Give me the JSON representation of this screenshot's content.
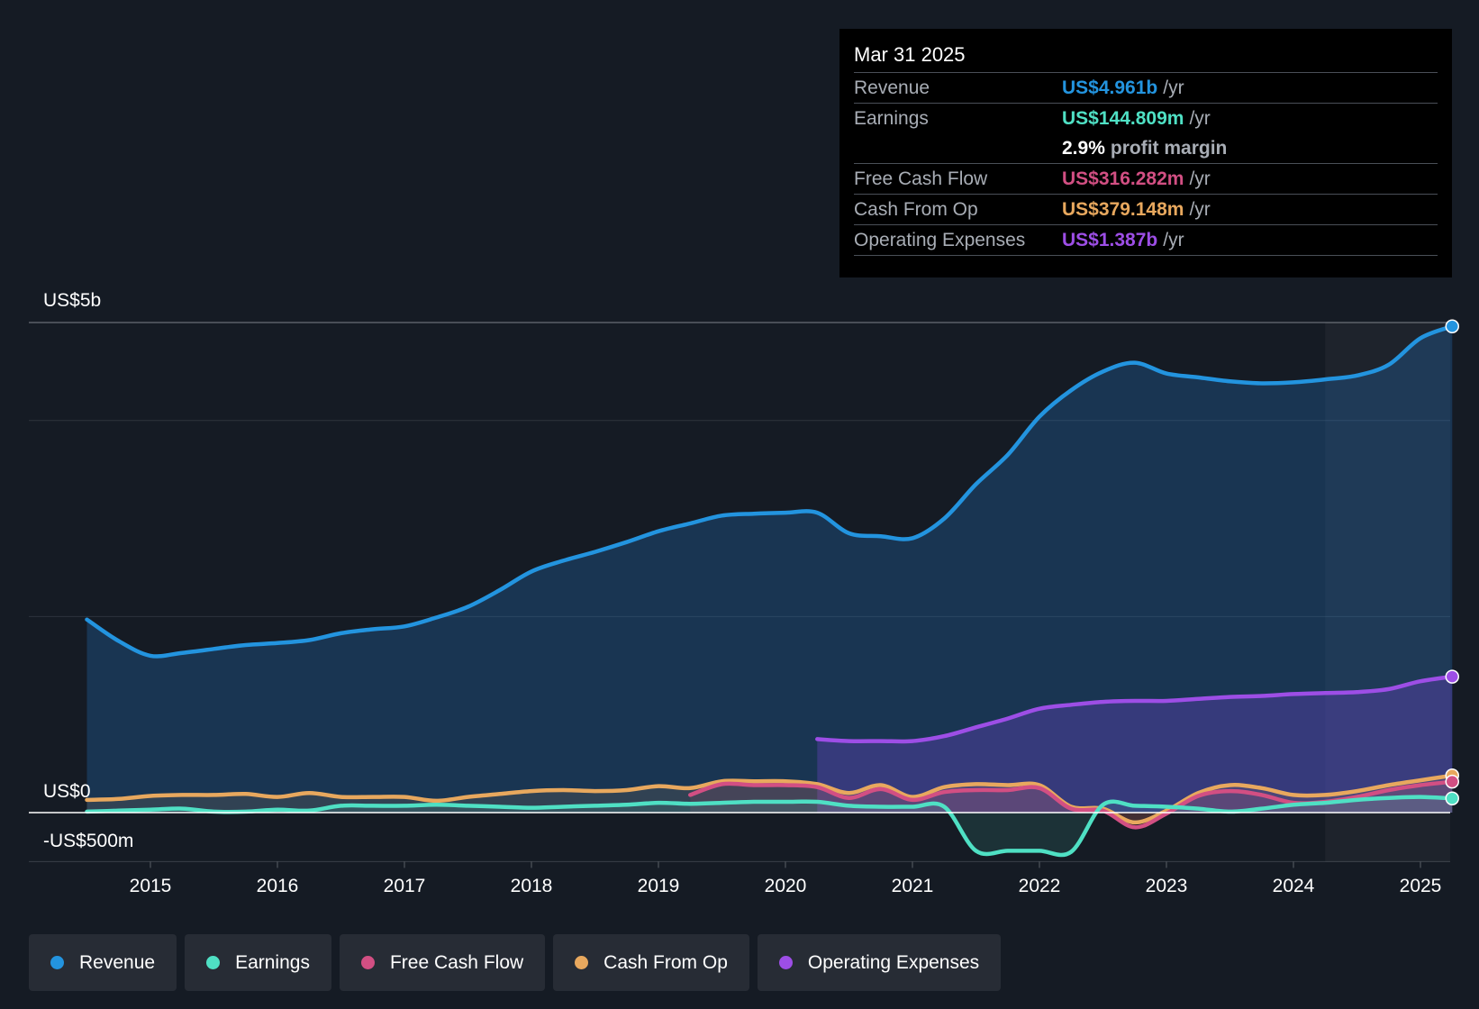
{
  "chart_data": {
    "type": "line",
    "y_axis_labels": [
      "US$5b",
      "US$0",
      "-US$500m"
    ],
    "ylim": [
      -500,
      5000
    ],
    "x_tick_labels": [
      "2015",
      "2016",
      "2017",
      "2018",
      "2019",
      "2020",
      "2021",
      "2022",
      "2023",
      "2024",
      "2025"
    ],
    "xlim": [
      2014.25,
      2025.25
    ],
    "forecast_start": 2024.25,
    "series": [
      {
        "name": "Revenue",
        "color": "#2394df",
        "fill": true,
        "x": [
          2014.5,
          2014.75,
          2015.0,
          2015.25,
          2015.5,
          2015.75,
          2016.0,
          2016.25,
          2016.5,
          2016.75,
          2017.0,
          2017.25,
          2017.5,
          2017.75,
          2018.0,
          2018.25,
          2018.5,
          2018.75,
          2019.0,
          2019.25,
          2019.5,
          2019.75,
          2020.0,
          2020.25,
          2020.5,
          2020.75,
          2021.0,
          2021.25,
          2021.5,
          2021.75,
          2022.0,
          2022.25,
          2022.5,
          2022.75,
          2023.0,
          2023.25,
          2023.5,
          2023.75,
          2024.0,
          2024.25,
          2024.5,
          2024.75,
          2025.0,
          2025.25
        ],
        "values": [
          1970,
          1750,
          1600,
          1630,
          1670,
          1710,
          1730,
          1760,
          1830,
          1870,
          1900,
          1990,
          2100,
          2270,
          2460,
          2570,
          2660,
          2760,
          2870,
          2950,
          3030,
          3050,
          3060,
          3060,
          2850,
          2820,
          2800,
          3000,
          3350,
          3650,
          4040,
          4310,
          4500,
          4590,
          4480,
          4440,
          4400,
          4380,
          4390,
          4420,
          4460,
          4570,
          4840,
          4961
        ]
      },
      {
        "name": "Operating Expenses",
        "color": "#9d4ee6",
        "fill": true,
        "x": [
          2020.25,
          2020.5,
          2020.75,
          2021.0,
          2021.25,
          2021.5,
          2021.75,
          2022.0,
          2022.25,
          2022.5,
          2022.75,
          2023.0,
          2023.25,
          2023.5,
          2023.75,
          2024.0,
          2024.25,
          2024.5,
          2024.75,
          2025.0,
          2025.25
        ],
        "values": [
          750,
          730,
          730,
          730,
          780,
          870,
          960,
          1060,
          1100,
          1130,
          1140,
          1140,
          1160,
          1180,
          1190,
          1210,
          1220,
          1230,
          1260,
          1340,
          1387
        ]
      },
      {
        "name": "Cash From Op",
        "color": "#e8a85e",
        "fill": false,
        "x": [
          2014.5,
          2014.75,
          2015.0,
          2015.25,
          2015.5,
          2015.75,
          2016.0,
          2016.25,
          2016.5,
          2016.75,
          2017.0,
          2017.25,
          2017.5,
          2017.75,
          2018.0,
          2018.25,
          2018.5,
          2018.75,
          2019.0,
          2019.25,
          2019.5,
          2019.75,
          2020.0,
          2020.25,
          2020.5,
          2020.75,
          2021.0,
          2021.25,
          2021.5,
          2021.75,
          2022.0,
          2022.25,
          2022.5,
          2022.75,
          2023.0,
          2023.25,
          2023.5,
          2023.75,
          2024.0,
          2024.25,
          2024.5,
          2024.75,
          2025.0,
          2025.25
        ],
        "values": [
          130,
          140,
          170,
          180,
          180,
          190,
          160,
          200,
          160,
          160,
          160,
          120,
          160,
          190,
          220,
          230,
          220,
          230,
          270,
          250,
          320,
          320,
          320,
          290,
          200,
          280,
          160,
          260,
          290,
          280,
          280,
          60,
          40,
          -100,
          20,
          200,
          280,
          250,
          180,
          180,
          220,
          280,
          330,
          379
        ]
      },
      {
        "name": "Free Cash Flow",
        "color": "#d24f83",
        "fill": false,
        "x": [
          2019.25,
          2019.5,
          2019.75,
          2020.0,
          2020.25,
          2020.5,
          2020.75,
          2021.0,
          2021.25,
          2021.5,
          2021.75,
          2022.0,
          2022.25,
          2022.5,
          2022.75,
          2023.0,
          2023.25,
          2023.5,
          2023.75,
          2024.0,
          2024.25,
          2024.5,
          2024.75,
          2025.0,
          2025.25
        ],
        "values": [
          180,
          290,
          280,
          280,
          260,
          150,
          240,
          130,
          210,
          230,
          230,
          250,
          40,
          20,
          -150,
          -10,
          170,
          220,
          180,
          100,
          110,
          160,
          230,
          280,
          316
        ]
      },
      {
        "name": "Earnings",
        "color": "#4fe0c4",
        "fill": false,
        "x": [
          2014.5,
          2014.75,
          2015.0,
          2015.25,
          2015.5,
          2015.75,
          2016.0,
          2016.25,
          2016.5,
          2016.75,
          2017.0,
          2017.25,
          2017.5,
          2017.75,
          2018.0,
          2018.25,
          2018.5,
          2018.75,
          2019.0,
          2019.25,
          2019.5,
          2019.75,
          2020.0,
          2020.25,
          2020.5,
          2020.75,
          2021.0,
          2021.25,
          2021.5,
          2021.75,
          2022.0,
          2022.25,
          2022.5,
          2022.75,
          2023.0,
          2023.25,
          2023.5,
          2023.75,
          2024.0,
          2024.25,
          2024.5,
          2024.75,
          2025.0,
          2025.25
        ],
        "values": [
          10,
          20,
          30,
          40,
          10,
          10,
          30,
          20,
          70,
          70,
          70,
          80,
          70,
          60,
          50,
          60,
          70,
          80,
          100,
          90,
          100,
          110,
          110,
          110,
          70,
          60,
          60,
          60,
          -390,
          -390,
          -390,
          -400,
          80,
          70,
          60,
          40,
          10,
          40,
          80,
          100,
          130,
          150,
          160,
          145
        ]
      }
    ]
  },
  "tooltip": {
    "date": "Mar 31 2025",
    "rows": [
      {
        "label": "Revenue",
        "value": "US$4.961b",
        "unit": "/yr",
        "color": "#2394df"
      },
      {
        "label": "Earnings",
        "value": "US$144.809m",
        "unit": "/yr",
        "color": "#4fe0c4"
      },
      {
        "label": "Free Cash Flow",
        "value": "US$316.282m",
        "unit": "/yr",
        "color": "#d24f83"
      },
      {
        "label": "Cash From Op",
        "value": "US$379.148m",
        "unit": "/yr",
        "color": "#e8a85e"
      },
      {
        "label": "Operating Expenses",
        "value": "US$1.387b",
        "unit": "/yr",
        "color": "#9d4ee6"
      }
    ],
    "margin_value": "2.9%",
    "margin_text": "profit margin"
  },
  "legend": {
    "items": [
      {
        "label": "Revenue",
        "color": "#2394df"
      },
      {
        "label": "Earnings",
        "color": "#4fe0c4"
      },
      {
        "label": "Free Cash Flow",
        "color": "#d24f83"
      },
      {
        "label": "Cash From Op",
        "color": "#e8a85e"
      },
      {
        "label": "Operating Expenses",
        "color": "#9d4ee6"
      }
    ]
  }
}
